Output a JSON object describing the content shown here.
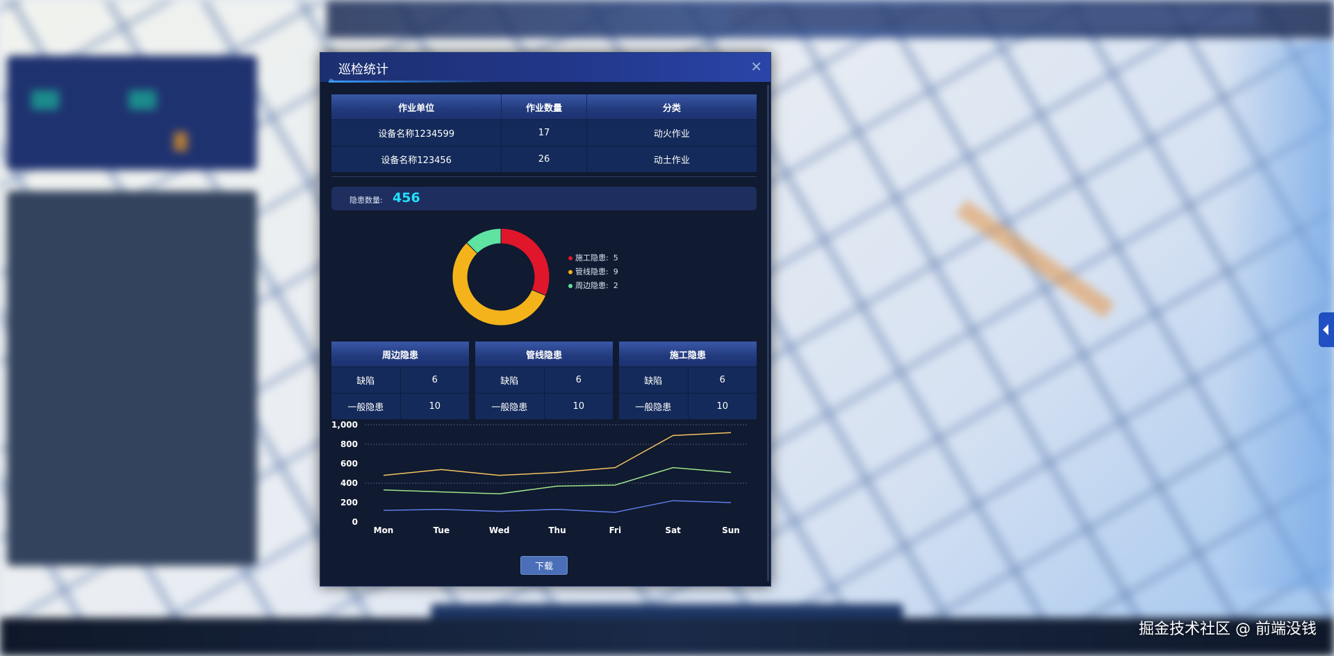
{
  "dialog": {
    "title": "巡检统计",
    "close_icon": "close-icon"
  },
  "work_table": {
    "headers": [
      "作业单位",
      "作业数量",
      "分类"
    ],
    "rows": [
      [
        "设备名称1234599",
        "17",
        "动火作业"
      ],
      [
        "设备名称123456",
        "26",
        "动土作业"
      ]
    ]
  },
  "hazard_count": {
    "label": "隐患数量:",
    "value": "456"
  },
  "donut": {
    "legend": [
      {
        "name": "施工隐患:",
        "value": 5,
        "color": "#e0162b"
      },
      {
        "name": "管线隐患:",
        "value": 9,
        "color": "#f4b31b"
      },
      {
        "name": "周边隐患:",
        "value": 2,
        "color": "#5ee3a1"
      }
    ]
  },
  "small_tables": [
    {
      "title": "周边隐患",
      "rows": [
        [
          "缺陷",
          "6"
        ],
        [
          "一般隐患",
          "10"
        ]
      ]
    },
    {
      "title": "管线隐患",
      "rows": [
        [
          "缺陷",
          "6"
        ],
        [
          "一般隐患",
          "10"
        ]
      ]
    },
    {
      "title": "施工隐患",
      "rows": [
        [
          "缺陷",
          "6"
        ],
        [
          "一般隐患",
          "10"
        ]
      ]
    }
  ],
  "chart_data": {
    "type": "line",
    "x": [
      "Mon",
      "Tue",
      "Wed",
      "Thu",
      "Fri",
      "Sat",
      "Sun"
    ],
    "ylim": [
      0,
      1000
    ],
    "yticks": [
      "0",
      "200",
      "400",
      "600",
      "800",
      "1,000"
    ],
    "series": [
      {
        "values": [
          480,
          540,
          480,
          510,
          560,
          890,
          920
        ],
        "color": "#f5c461"
      },
      {
        "values": [
          330,
          310,
          290,
          370,
          380,
          560,
          510
        ],
        "color": "#9fe58c"
      },
      {
        "values": [
          120,
          130,
          110,
          130,
          100,
          220,
          200
        ],
        "color": "#5d7de8"
      }
    ],
    "grid": true
  },
  "download_label": "下载",
  "watermark": "掘金技术社区 @ 前端没钱"
}
